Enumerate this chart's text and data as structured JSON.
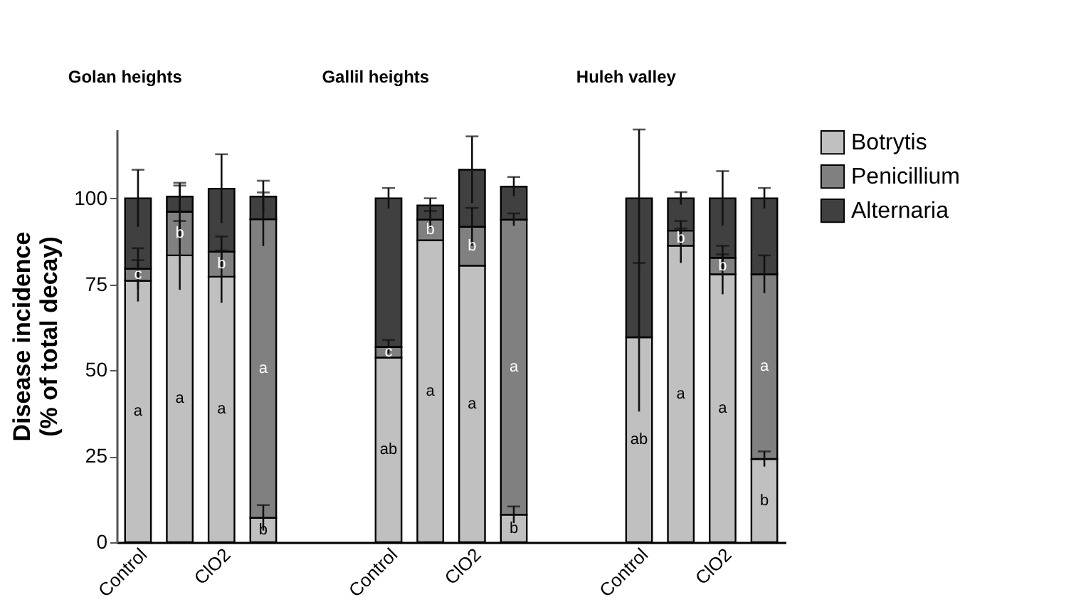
{
  "chart_data": {
    "type": "bar",
    "ylabel": "Disease incidence\n(% of total decay)",
    "annotations": [
      "Golan heights",
      "Gallil heights",
      "Huleh valley"
    ],
    "categories": [
      "Control",
      null,
      "ClO2",
      null,
      "Control",
      null,
      "ClO2",
      null,
      "Control",
      null,
      "ClO2",
      null
    ],
    "stacked": true,
    "ylim": [
      0,
      120
    ],
    "yticks": [
      0,
      25,
      50,
      75,
      100
    ],
    "grid": false,
    "legend": "right",
    "series": [
      {
        "name": "Botrytis",
        "color": "#c0c0c0",
        "values": [
          76,
          83.4,
          77.2,
          7.1,
          53.7,
          87.8,
          80.4,
          8,
          59.6,
          86.2,
          77.9,
          24.2
        ],
        "errors": [
          6,
          10,
          7.6,
          3.7,
          null,
          null,
          null,
          2.4,
          21.6,
          5,
          5.8,
          2.2
        ],
        "value_labels": [
          "a",
          "a",
          "a",
          "b",
          "ab",
          "a",
          "a",
          "b",
          "ab",
          "a",
          "a",
          "b"
        ]
      },
      {
        "name": "Penicillium",
        "color": "#808080",
        "values": [
          3.5,
          12.7,
          7.3,
          86.8,
          3.1,
          6,
          11.3,
          85.8,
          null,
          4.4,
          4.8,
          53.7
        ],
        "errors": [
          6,
          7.6,
          4.4,
          7.8,
          2,
          2.5,
          5.5,
          1.8,
          null,
          2.8,
          3.5,
          5.5
        ],
        "value_labels": [
          "c",
          "b",
          "b",
          "a",
          "c",
          "b",
          "b",
          "a",
          null,
          "b",
          "b",
          "a"
        ]
      },
      {
        "name": "Alternaria",
        "color": "#404040",
        "values": [
          20.5,
          4.4,
          18.3,
          6.6,
          43.2,
          4.1,
          16.6,
          9.6,
          40.4,
          9.4,
          17.3,
          22.1
        ],
        "errors": [
          8.3,
          4,
          10,
          4.6,
          3,
          2.1,
          9.7,
          2.8,
          20,
          1.8,
          7.9,
          3
        ]
      }
    ]
  }
}
